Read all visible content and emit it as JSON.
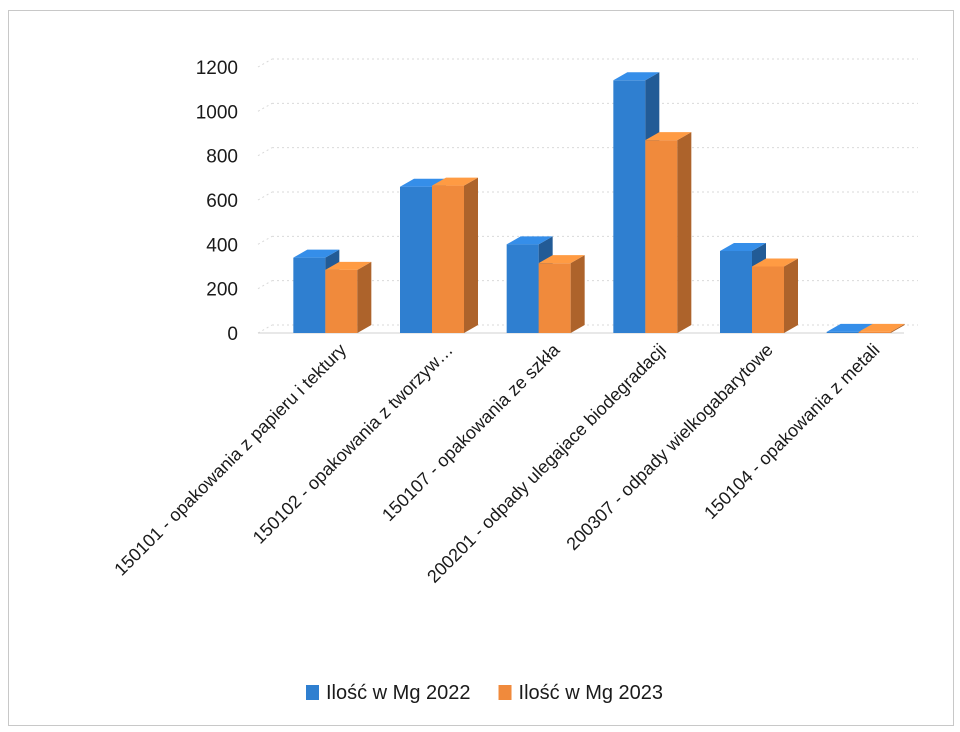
{
  "chart_data": {
    "type": "bar",
    "title": "",
    "xlabel": "",
    "ylabel": "",
    "ylim": [
      0,
      1200
    ],
    "yticks": [
      0,
      200,
      400,
      600,
      800,
      1000,
      1200
    ],
    "grid": true,
    "legend_position": "bottom",
    "categories": [
      "150101 - opakowania z papieru i tektury",
      "150102 - opakowania z tworzyw…",
      "150107 - opakowania ze szkła",
      "200201 - odpady ulegajace biodegradacji",
      "200307 - odpady wielkogabarytowe",
      "150104 - opakowania z metali"
    ],
    "series": [
      {
        "name": "Ilość w Mg 2022",
        "color": "#2f7fd0",
        "values": [
          340,
          660,
          400,
          1140,
          370,
          5
        ]
      },
      {
        "name": "Ilość w Mg 2023",
        "color": "#f08a3c",
        "values": [
          285,
          665,
          315,
          870,
          300,
          5
        ]
      }
    ]
  }
}
